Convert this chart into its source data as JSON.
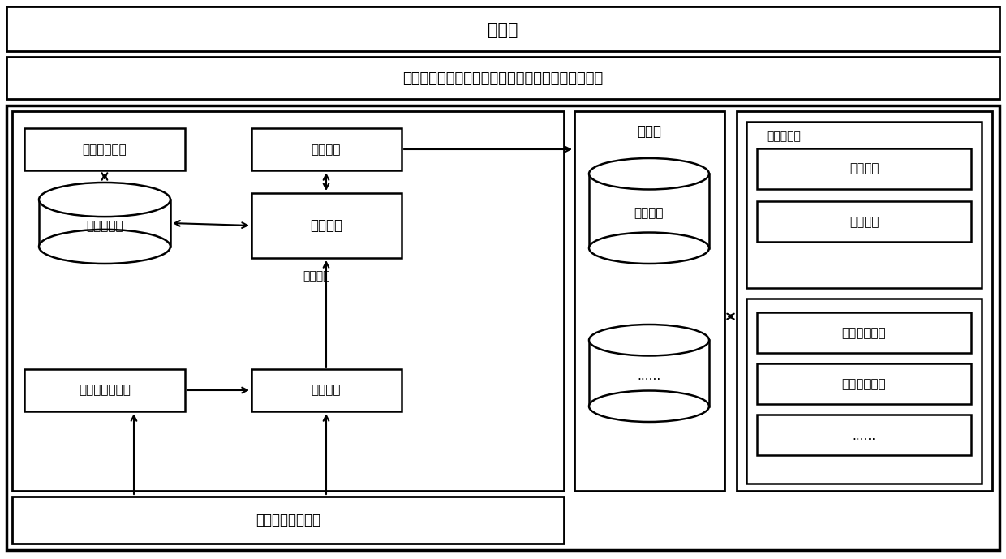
{
  "fig_width": 12.4,
  "fig_height": 6.89,
  "bg_color": "#ffffff",
  "top_bar_text": "可视化",
  "middle_bar_text": "数据流处理、历史数据分析、统计分析、数据挖掘等",
  "bottom_sensor_text": "传感器、数据源等",
  "event_config_text": "事件模式配置",
  "pattern_db_text": "模式规则库",
  "rule_mgmt_text": "规则管理",
  "transaction_text": "事务调度",
  "condition_text": "条件匹配",
  "event_filter_text": "事件过滤预处理",
  "event_detect_text": "事件检测",
  "cmd_lib_text": "指令库",
  "biz_flow_text": "业务流程",
  "dots_text": "......",
  "flow_modeler_text": "流程建模器",
  "flow_config_text": "流程组态",
  "algo_mgmt_text": "算法管理",
  "smart_obj_text": "智能对象管理",
  "biz_flow_mgmt_text": "业务流程管理",
  "dots2_text": "......"
}
